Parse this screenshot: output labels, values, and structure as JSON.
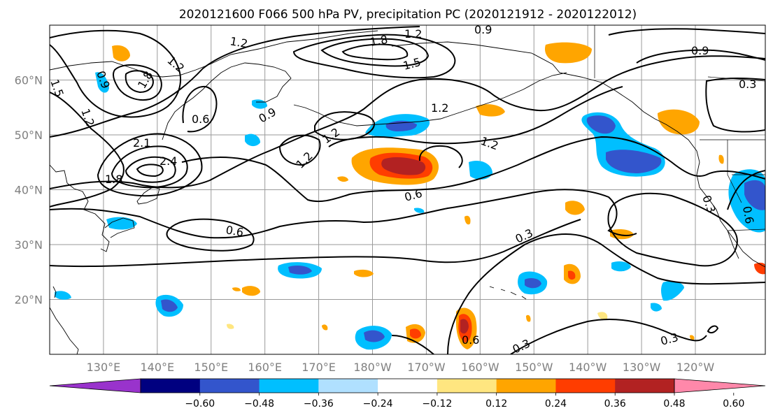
{
  "title": "2020121600 F066 500 hPa PV, precipitation PC (2020121912 - 2020122012)",
  "map": {
    "lon_range": [
      120,
      253
    ],
    "lat_range": [
      10,
      70
    ],
    "lat_ticks": [
      {
        "value": 60,
        "label": "60°N"
      },
      {
        "value": 50,
        "label": "50°N"
      },
      {
        "value": 40,
        "label": "40°N"
      },
      {
        "value": 30,
        "label": "30°N"
      },
      {
        "value": 20,
        "label": "20°N"
      }
    ],
    "lon_ticks": [
      {
        "value": 130,
        "label": "130°E"
      },
      {
        "value": 140,
        "label": "140°E"
      },
      {
        "value": 150,
        "label": "150°E"
      },
      {
        "value": 160,
        "label": "160°E"
      },
      {
        "value": 170,
        "label": "170°E"
      },
      {
        "value": 180,
        "label": "180°W"
      },
      {
        "value": 190,
        "label": "170°W"
      },
      {
        "value": 200,
        "label": "160°W"
      },
      {
        "value": 210,
        "label": "150°W"
      },
      {
        "value": 220,
        "label": "140°W"
      },
      {
        "value": 230,
        "label": "130°W"
      },
      {
        "value": 240,
        "label": "120°W"
      }
    ],
    "contour_labels": [
      "1.2",
      "1.8",
      "1.2",
      "0.9",
      "1.5",
      "1.2",
      "0.9",
      "1.8",
      "1.2",
      "1.5",
      "0.9",
      "0.3",
      "0.6",
      "0.9",
      "1.2",
      "1.2",
      "1.2",
      "1.2",
      "2.1",
      "2.4",
      "1.8",
      "0.6",
      "0.6",
      "0.3",
      "0.6",
      "0.3",
      "0.3",
      "0.3",
      "0.6"
    ]
  },
  "colorbar": {
    "colors": [
      "#9933cc",
      "#000080",
      "#3355cc",
      "#00bfff",
      "#b0e0ff",
      "#ffffff",
      "#ffe680",
      "#ffa500",
      "#ff3d00",
      "#b22222",
      "#ff88aa"
    ],
    "tick_labels": [
      "−0.60",
      "−0.48",
      "−0.36",
      "−0.24",
      "−0.12",
      "0.12",
      "0.24",
      "0.36",
      "0.48",
      "0.60"
    ]
  }
}
